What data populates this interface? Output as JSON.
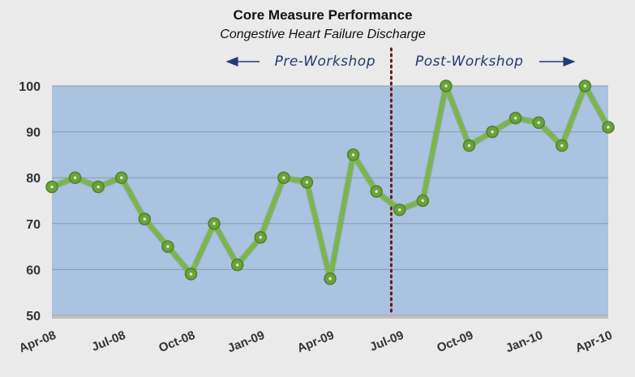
{
  "chart_data": {
    "type": "line",
    "title": "Core Measure Performance",
    "subtitle": "Congestive Heart Failure Discharge",
    "xlabel": "",
    "ylabel": "",
    "ylim": [
      50,
      100
    ],
    "yticks": [
      50,
      60,
      70,
      80,
      90,
      100
    ],
    "grid": true,
    "x_labels": [
      "Apr-08",
      "Jul-08",
      "Oct-08",
      "Jan-09",
      "Apr-09",
      "Jul-09",
      "Oct-09",
      "Jan-10",
      "Apr-10"
    ],
    "x": [
      "Apr-08",
      "May-08",
      "Jun-08",
      "Jul-08",
      "Aug-08",
      "Sep-08",
      "Oct-08",
      "Nov-08",
      "Dec-08",
      "Jan-09",
      "Feb-09",
      "Mar-09",
      "Apr-09",
      "May-09",
      "Jun-09",
      "Jul-09",
      "Aug-09",
      "Sep-09",
      "Oct-09",
      "Nov-09",
      "Dec-09",
      "Jan-10",
      "Feb-10",
      "Mar-10",
      "Apr-10"
    ],
    "series": [
      {
        "values": [
          78,
          80,
          78,
          80,
          71,
          65,
          59,
          70,
          61,
          67,
          80,
          79,
          58,
          85,
          77,
          73,
          75,
          100,
          87,
          90,
          93,
          92,
          87,
          100,
          91
        ]
      }
    ],
    "annotations": {
      "divider_between": [
        "Jun-09",
        "Jul-09"
      ],
      "pre_label": "Pre-Workshop",
      "post_label": "Post-Workshop"
    },
    "colors": {
      "plot_background": "#a9c3e0",
      "line": "#7ab648",
      "marker": "#6aa33a",
      "divider": "#6b1a1a",
      "phase_text": "#1f3a78",
      "page_background": "#eaeaea"
    }
  }
}
